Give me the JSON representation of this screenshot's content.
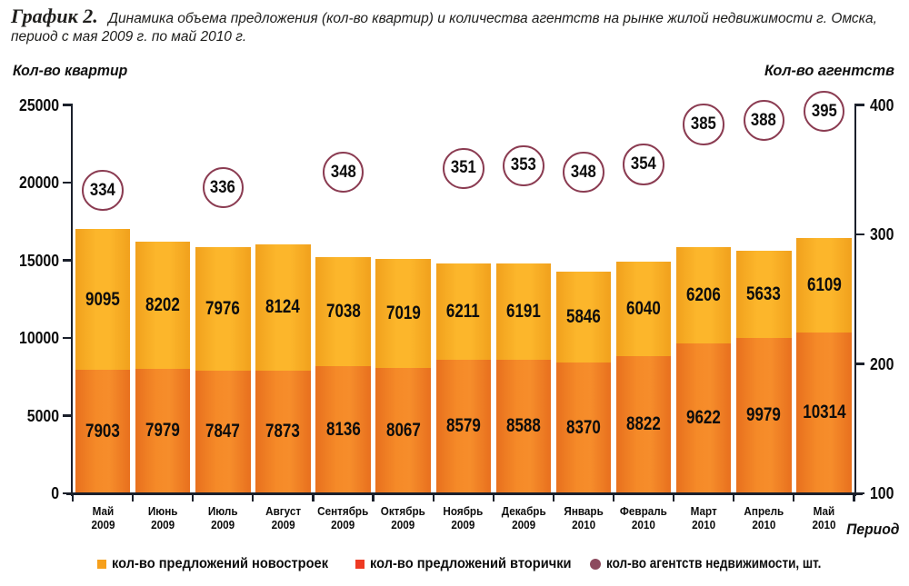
{
  "title": {
    "prefix": "График 2.",
    "line1": "Динамика объема предложения (кол-во квартир) и количества агентств на рынке жилой недвижимости г. Омска,",
    "line2": "период с мая 2009 г. по май 2010 г."
  },
  "axes": {
    "left_caption": "Кол-во квартир",
    "right_caption": "Кол-во агентств",
    "x_caption": "Период",
    "left_ticks": [
      "25000",
      "20000",
      "15000",
      "10000",
      "5000",
      "0"
    ],
    "right_ticks": [
      "400",
      "300",
      "200",
      "100"
    ],
    "left_range": [
      0,
      25000
    ],
    "right_range": [
      100,
      400
    ]
  },
  "chart_data": {
    "type": "bar",
    "stacked": true,
    "title": "Динамика объема предложения (кол-во квартир) и количества агентств на рынке жилой недвижимости г. Омска, период с мая 2009 г. по май 2010 г.",
    "categories": [
      {
        "month": "Май",
        "year": "2009"
      },
      {
        "month": "Июнь",
        "year": "2009"
      },
      {
        "month": "Июль",
        "year": "2009"
      },
      {
        "month": "Август",
        "year": "2009"
      },
      {
        "month": "Сентябрь",
        "year": "2009"
      },
      {
        "month": "Октябрь",
        "year": "2009"
      },
      {
        "month": "Ноябрь",
        "year": "2009"
      },
      {
        "month": "Декабрь",
        "year": "2009"
      },
      {
        "month": "Январь",
        "year": "2010"
      },
      {
        "month": "Февраль",
        "year": "2010"
      },
      {
        "month": "Март",
        "year": "2010"
      },
      {
        "month": "Апрель",
        "year": "2010"
      },
      {
        "month": "Май",
        "year": "2010"
      }
    ],
    "series": [
      {
        "name": "кол-во предложений вторички",
        "stack_position": "bottom",
        "color": "#f0801f",
        "values": [
          7903,
          7979,
          7847,
          7873,
          8136,
          8067,
          8579,
          8588,
          8370,
          8822,
          9622,
          9979,
          10314
        ]
      },
      {
        "name": "кол-во предложений новостроек",
        "stack_position": "top",
        "color": "#fbb42a",
        "values": [
          9095,
          8202,
          7976,
          8124,
          7038,
          7019,
          6211,
          6191,
          5846,
          6040,
          6206,
          5633,
          6109
        ]
      }
    ],
    "markers": {
      "name": "кол-во агентств недвижимости, шт.",
      "axis": "right",
      "values": [
        334,
        null,
        336,
        null,
        348,
        null,
        351,
        353,
        348,
        354,
        385,
        388,
        395
      ]
    },
    "ylim_left": [
      0,
      25000
    ],
    "ylim_right": [
      100,
      400
    ],
    "xlabel": "Период",
    "ylabel_left": "Кол-во квартир",
    "ylabel_right": "Кол-во агентств",
    "grid": false,
    "legend_position": "bottom"
  },
  "legend": {
    "items": [
      {
        "label": "кол-во предложений новостроек",
        "marker": "square",
        "color": "#f6a01c"
      },
      {
        "label": "кол-во предложений вторички",
        "marker": "square",
        "color": "#ee3a23"
      },
      {
        "label": "кол-во агентств недвижимости, шт.",
        "marker": "circle",
        "color": "#8c4a5e"
      }
    ]
  },
  "colors": {
    "bar_bottom": "#f0801f",
    "bar_top": "#fbb42a",
    "marker_ring": "#8b3c52",
    "axis": "#1b202b",
    "text": "#0d0d0d"
  }
}
